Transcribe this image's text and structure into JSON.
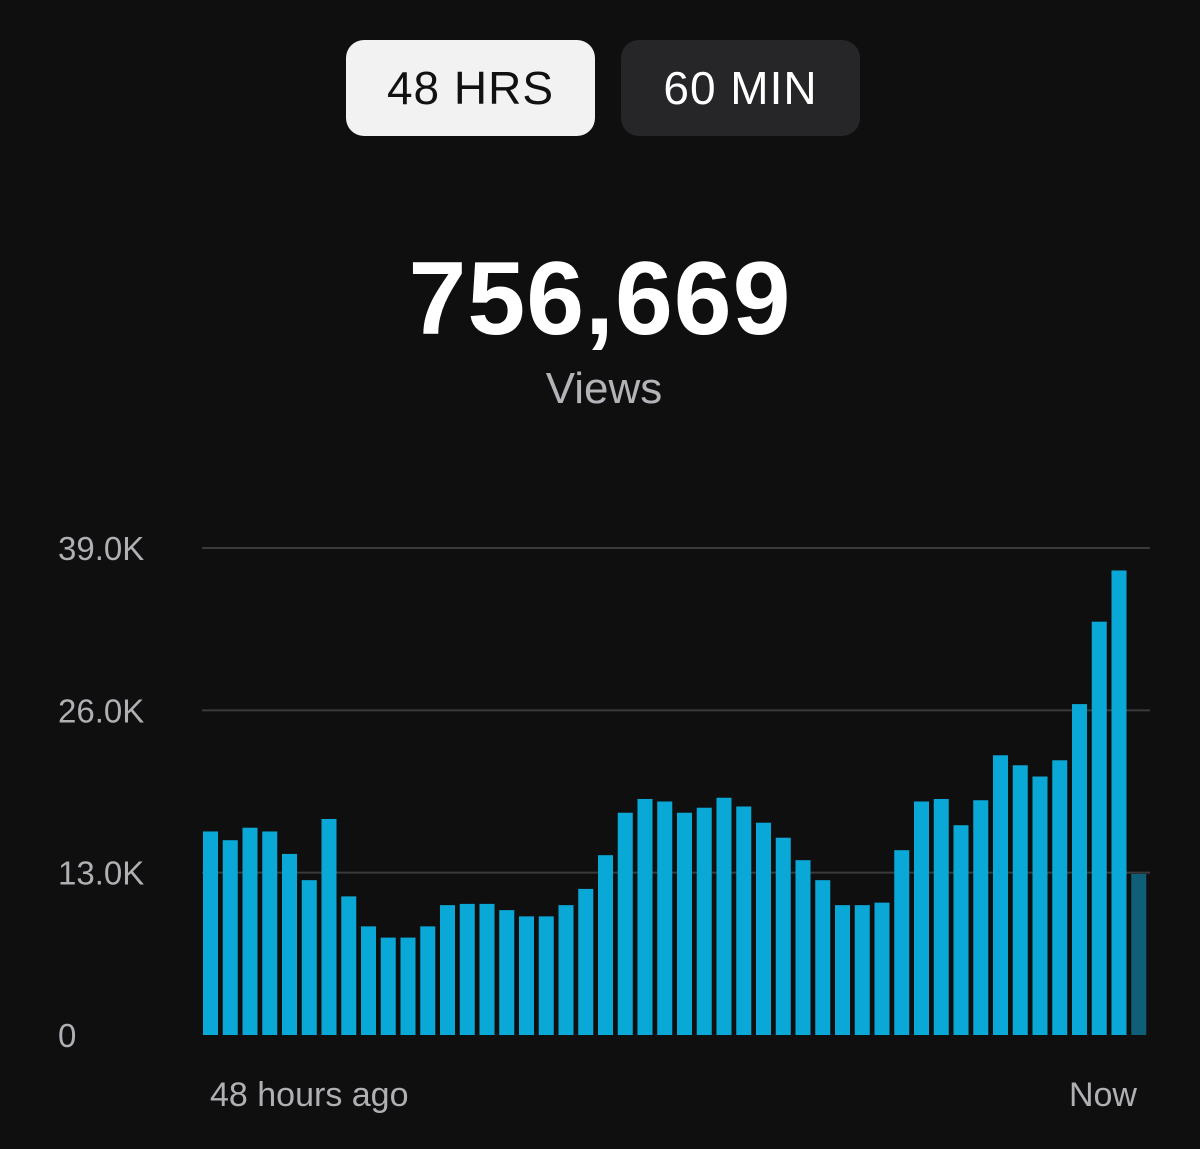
{
  "toggle": {
    "options": [
      {
        "label": "48 HRS",
        "selected": true
      },
      {
        "label": "60 MIN",
        "selected": false
      }
    ]
  },
  "summary": {
    "total": "756,669",
    "label": "Views"
  },
  "colors": {
    "bar": "#0aa8d6",
    "bar_current": "#0e5f77",
    "background": "#0f0f10"
  },
  "chart_data": {
    "type": "bar",
    "title": "",
    "xlabel": "",
    "ylabel": "",
    "x_start_label": "48 hours ago",
    "x_end_label": "Now",
    "ylim": [
      0,
      39000
    ],
    "yticks": [
      0,
      13000,
      26000,
      39000
    ],
    "ytick_labels": [
      "0",
      "13.0K",
      "26.0K",
      "39.0K"
    ],
    "grid": true,
    "values": [
      16300,
      15600,
      16600,
      16300,
      14500,
      12400,
      17300,
      11100,
      8700,
      7800,
      7800,
      8700,
      10400,
      10500,
      10500,
      10000,
      9500,
      9500,
      10400,
      11700,
      14400,
      17800,
      18900,
      18700,
      17800,
      18200,
      19000,
      18300,
      17000,
      15800,
      14000,
      12400,
      10400,
      10400,
      10600,
      14800,
      18700,
      18900,
      16800,
      18800,
      22400,
      21600,
      20700,
      22000,
      26500,
      33100,
      37200,
      12900
    ],
    "last_bar_partial": true
  }
}
